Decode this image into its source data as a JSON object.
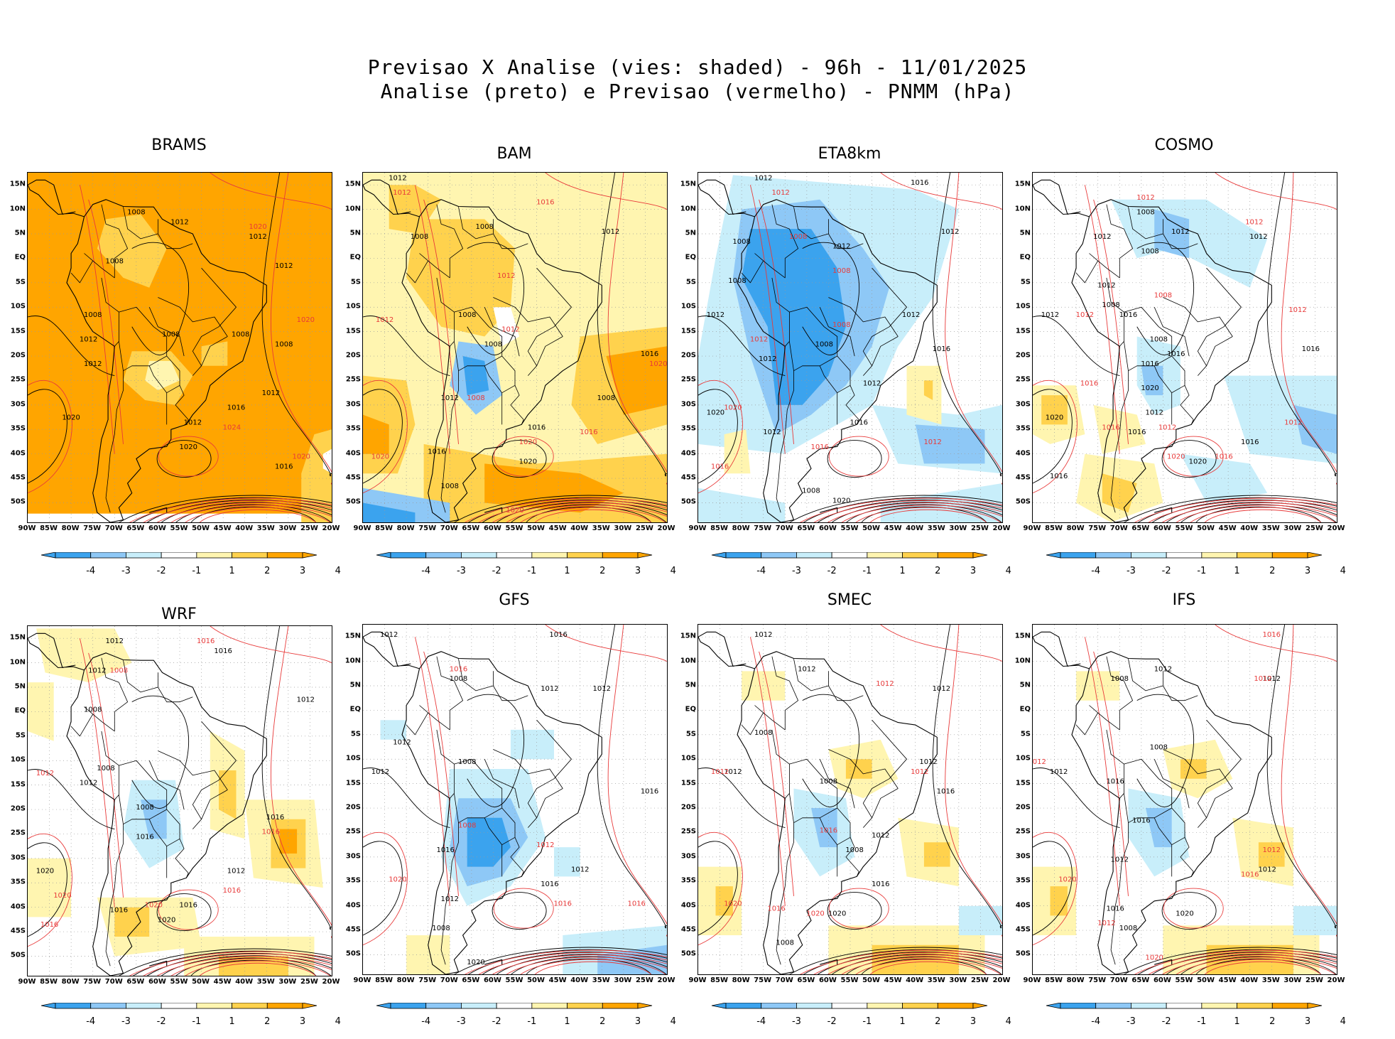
{
  "header": {
    "line1": "Previsao X Analise (vies: shaded) - 96h - 11/01/2025",
    "line2": "Analise (preto) e Previsao (vermelho) - PNMM (hPa)"
  },
  "colors": {
    "analysis_contour": "#000000",
    "forecast_contour": "#e83a3a",
    "bias_colors": [
      "#3ba3ee",
      "#8ec8f6",
      "#c8eefa",
      "#ffffff",
      "#fff5b0",
      "#ffd24d",
      "#ffa500"
    ]
  },
  "axes": {
    "lat_labels": [
      "15N",
      "10N",
      "5N",
      "EQ",
      "5S",
      "10S",
      "15S",
      "20S",
      "25S",
      "30S",
      "35S",
      "40S",
      "45S",
      "50S"
    ],
    "lon_labels": [
      "90W",
      "85W",
      "80W",
      "75W",
      "70W",
      "65W",
      "60W",
      "55W",
      "50W",
      "45W",
      "40W",
      "35W",
      "30W",
      "25W",
      "20W"
    ]
  },
  "colorbar": {
    "labels": [
      "-4",
      "-3",
      "-2",
      "-1",
      "1",
      "2",
      "3",
      "4"
    ]
  },
  "panels": [
    {
      "model": "BRAMS",
      "bias": "strong-positive",
      "black_labels": [
        {
          "t": "1008",
          "lon": -65,
          "lat": 9
        },
        {
          "t": "1012",
          "lon": -55,
          "lat": 7
        },
        {
          "t": "1012",
          "lon": -37,
          "lat": 4
        },
        {
          "t": "1012",
          "lon": -31,
          "lat": -2
        },
        {
          "t": "1008",
          "lon": -70,
          "lat": -1
        },
        {
          "t": "1008",
          "lon": -75,
          "lat": -12
        },
        {
          "t": "1012",
          "lon": -76,
          "lat": -17
        },
        {
          "t": "1008",
          "lon": -57,
          "lat": -16
        },
        {
          "t": "1008",
          "lon": -41,
          "lat": -16
        },
        {
          "t": "1008",
          "lon": -31,
          "lat": -18
        },
        {
          "t": "1012",
          "lon": -75,
          "lat": -22
        },
        {
          "t": "1012",
          "lon": -34,
          "lat": -28
        },
        {
          "t": "1016",
          "lon": -42,
          "lat": -31
        },
        {
          "t": "1012",
          "lon": -52,
          "lat": -34
        },
        {
          "t": "1020",
          "lon": -80,
          "lat": -33
        },
        {
          "t": "1016",
          "lon": -31,
          "lat": -43
        },
        {
          "t": "1020",
          "lon": -53,
          "lat": -39
        }
      ],
      "red_labels": [
        {
          "t": "1020",
          "lon": -37,
          "lat": 6
        },
        {
          "t": "1020",
          "lon": -26,
          "lat": -13
        },
        {
          "t": "1024",
          "lon": -43,
          "lat": -35
        },
        {
          "t": "1020",
          "lon": -27,
          "lat": -41
        }
      ]
    },
    {
      "model": "BAM",
      "bias": "positive",
      "black_labels": [
        {
          "t": "1012",
          "lon": -82,
          "lat": 16
        },
        {
          "t": "1008",
          "lon": -62,
          "lat": 6
        },
        {
          "t": "1012",
          "lon": -33,
          "lat": 5
        },
        {
          "t": "1008",
          "lon": -77,
          "lat": 4
        },
        {
          "t": "1008",
          "lon": -66,
          "lat": -12
        },
        {
          "t": "1008",
          "lon": -60,
          "lat": -18
        },
        {
          "t": "1016",
          "lon": -24,
          "lat": -20
        },
        {
          "t": "1012",
          "lon": -70,
          "lat": -29
        },
        {
          "t": "1008",
          "lon": -34,
          "lat": -29
        },
        {
          "t": "1016",
          "lon": -50,
          "lat": -35
        },
        {
          "t": "1016",
          "lon": -73,
          "lat": -40
        },
        {
          "t": "1020",
          "lon": -52,
          "lat": -42
        },
        {
          "t": "1008",
          "lon": -70,
          "lat": -47
        }
      ],
      "red_labels": [
        {
          "t": "1012",
          "lon": -81,
          "lat": 13
        },
        {
          "t": "1016",
          "lon": -48,
          "lat": 11
        },
        {
          "t": "1012",
          "lon": -57,
          "lat": -4
        },
        {
          "t": "1012",
          "lon": -56,
          "lat": -15
        },
        {
          "t": "1012",
          "lon": -85,
          "lat": -13
        },
        {
          "t": "1020",
          "lon": -22,
          "lat": -22
        },
        {
          "t": "1008",
          "lon": -64,
          "lat": -29
        },
        {
          "t": "1016",
          "lon": -38,
          "lat": -36
        },
        {
          "t": "1020",
          "lon": -52,
          "lat": -38
        },
        {
          "t": "1020",
          "lon": -86,
          "lat": -41
        },
        {
          "t": "1020",
          "lon": -55,
          "lat": -52
        }
      ]
    },
    {
      "model": "ETA8km",
      "bias": "negative",
      "black_labels": [
        {
          "t": "1012",
          "lon": -75,
          "lat": 16
        },
        {
          "t": "1016",
          "lon": -39,
          "lat": 15
        },
        {
          "t": "1008",
          "lon": -80,
          "lat": 3
        },
        {
          "t": "1012",
          "lon": -57,
          "lat": 2
        },
        {
          "t": "1012",
          "lon": -32,
          "lat": 5
        },
        {
          "t": "1008",
          "lon": -81,
          "lat": -5
        },
        {
          "t": "1012",
          "lon": -86,
          "lat": -12
        },
        {
          "t": "1012",
          "lon": -41,
          "lat": -12
        },
        {
          "t": "1008",
          "lon": -61,
          "lat": -18
        },
        {
          "t": "1012",
          "lon": -74,
          "lat": -21
        },
        {
          "t": "1016",
          "lon": -34,
          "lat": -19
        },
        {
          "t": "1012",
          "lon": -50,
          "lat": -26
        },
        {
          "t": "1020",
          "lon": -86,
          "lat": -32
        },
        {
          "t": "1016",
          "lon": -53,
          "lat": -34
        },
        {
          "t": "1012",
          "lon": -73,
          "lat": -36
        },
        {
          "t": "1008",
          "lon": -64,
          "lat": -48
        },
        {
          "t": "1020",
          "lon": -57,
          "lat": -50
        }
      ],
      "red_labels": [
        {
          "t": "1012",
          "lon": -71,
          "lat": 13
        },
        {
          "t": "1008",
          "lon": -67,
          "lat": 4
        },
        {
          "t": "1008",
          "lon": -57,
          "lat": -3
        },
        {
          "t": "1012",
          "lon": -76,
          "lat": -17
        },
        {
          "t": "1008",
          "lon": -57,
          "lat": -14
        },
        {
          "t": "1020",
          "lon": -82,
          "lat": -31
        },
        {
          "t": "1016",
          "lon": -62,
          "lat": -39
        },
        {
          "t": "1012",
          "lon": -36,
          "lat": -38
        },
        {
          "t": "1016",
          "lon": -85,
          "lat": -43
        }
      ]
    },
    {
      "model": "COSMO",
      "bias": "mixed",
      "black_labels": [
        {
          "t": "1008",
          "lon": -64,
          "lat": 9
        },
        {
          "t": "1012",
          "lon": -74,
          "lat": 4
        },
        {
          "t": "1012",
          "lon": -56,
          "lat": 5
        },
        {
          "t": "1012",
          "lon": -38,
          "lat": 4
        },
        {
          "t": "1008",
          "lon": -63,
          "lat": 1
        },
        {
          "t": "1012",
          "lon": -73,
          "lat": -6
        },
        {
          "t": "1008",
          "lon": -72,
          "lat": -10
        },
        {
          "t": "1016",
          "lon": -68,
          "lat": -12
        },
        {
          "t": "1012",
          "lon": -86,
          "lat": -12
        },
        {
          "t": "1008",
          "lon": -61,
          "lat": -17
        },
        {
          "t": "1016",
          "lon": -57,
          "lat": -20
        },
        {
          "t": "1016",
          "lon": -63,
          "lat": -22
        },
        {
          "t": "1016",
          "lon": -26,
          "lat": -19
        },
        {
          "t": "1020",
          "lon": -63,
          "lat": -27
        },
        {
          "t": "1012",
          "lon": -62,
          "lat": -32
        },
        {
          "t": "1020",
          "lon": -85,
          "lat": -33
        },
        {
          "t": "1016",
          "lon": -66,
          "lat": -36
        },
        {
          "t": "1016",
          "lon": -40,
          "lat": -38
        },
        {
          "t": "1016",
          "lon": -84,
          "lat": -45
        },
        {
          "t": "1020",
          "lon": -52,
          "lat": -42
        }
      ],
      "red_labels": [
        {
          "t": "1012",
          "lon": -64,
          "lat": 12
        },
        {
          "t": "1012",
          "lon": -39,
          "lat": 7
        },
        {
          "t": "1008",
          "lon": -60,
          "lat": -8
        },
        {
          "t": "1012",
          "lon": -78,
          "lat": -12
        },
        {
          "t": "1012",
          "lon": -29,
          "lat": -11
        },
        {
          "t": "1016",
          "lon": -77,
          "lat": -26
        },
        {
          "t": "1016",
          "lon": -72,
          "lat": -35
        },
        {
          "t": "1012",
          "lon": -59,
          "lat": -35
        },
        {
          "t": "1020",
          "lon": -57,
          "lat": -41
        },
        {
          "t": "1016",
          "lon": -46,
          "lat": -41
        },
        {
          "t": "1012",
          "lon": -30,
          "lat": -34
        }
      ]
    },
    {
      "model": "WRF",
      "bias": "mixed-positive",
      "black_labels": [
        {
          "t": "1012",
          "lon": -70,
          "lat": 14
        },
        {
          "t": "1016",
          "lon": -45,
          "lat": 12
        },
        {
          "t": "1012",
          "lon": -74,
          "lat": 8
        },
        {
          "t": "1012",
          "lon": -26,
          "lat": 2
        },
        {
          "t": "1008",
          "lon": -75,
          "lat": 0
        },
        {
          "t": "1008",
          "lon": -72,
          "lat": -12
        },
        {
          "t": "1012",
          "lon": -76,
          "lat": -15
        },
        {
          "t": "1008",
          "lon": -63,
          "lat": -20
        },
        {
          "t": "1016",
          "lon": -63,
          "lat": -26
        },
        {
          "t": "1016",
          "lon": -33,
          "lat": -22
        },
        {
          "t": "1020",
          "lon": -86,
          "lat": -33
        },
        {
          "t": "1012",
          "lon": -42,
          "lat": -33
        },
        {
          "t": "1016",
          "lon": -53,
          "lat": -40
        },
        {
          "t": "1020",
          "lon": -58,
          "lat": -43
        },
        {
          "t": "1016",
          "lon": -69,
          "lat": -41
        }
      ],
      "red_labels": [
        {
          "t": "1012",
          "lon": -86,
          "lat": -13
        },
        {
          "t": "1008",
          "lon": -69,
          "lat": 8
        },
        {
          "t": "1016",
          "lon": -49,
          "lat": 14
        },
        {
          "t": "1016",
          "lon": -34,
          "lat": -25
        },
        {
          "t": "1020",
          "lon": -82,
          "lat": -38
        },
        {
          "t": "1016",
          "lon": -43,
          "lat": -37
        },
        {
          "t": "1016",
          "lon": -85,
          "lat": -44
        },
        {
          "t": "1020",
          "lon": -61,
          "lat": -40
        }
      ]
    },
    {
      "model": "GFS",
      "bias": "negative-light",
      "black_labels": [
        {
          "t": "1012",
          "lon": -84,
          "lat": 15
        },
        {
          "t": "1016",
          "lon": -45,
          "lat": 15
        },
        {
          "t": "1008",
          "lon": -68,
          "lat": 6
        },
        {
          "t": "1012",
          "lon": -47,
          "lat": 4
        },
        {
          "t": "1012",
          "lon": -35,
          "lat": 4
        },
        {
          "t": "1012",
          "lon": -81,
          "lat": -7
        },
        {
          "t": "1008",
          "lon": -66,
          "lat": -11
        },
        {
          "t": "1012",
          "lon": -86,
          "lat": -13
        },
        {
          "t": "1016",
          "lon": -24,
          "lat": -17
        },
        {
          "t": "1016",
          "lon": -71,
          "lat": -29
        },
        {
          "t": "1016",
          "lon": -47,
          "lat": -36
        },
        {
          "t": "1012",
          "lon": -40,
          "lat": -33
        },
        {
          "t": "1008",
          "lon": -72,
          "lat": -45
        },
        {
          "t": "1020",
          "lon": -64,
          "lat": -52
        },
        {
          "t": "1012",
          "lon": -70,
          "lat": -39
        }
      ],
      "red_labels": [
        {
          "t": "1016",
          "lon": -68,
          "lat": 8
        },
        {
          "t": "1008",
          "lon": -66,
          "lat": -24
        },
        {
          "t": "1012",
          "lon": -48,
          "lat": -28
        },
        {
          "t": "1020",
          "lon": -82,
          "lat": -35
        },
        {
          "t": "1016",
          "lon": -44,
          "lat": -40
        },
        {
          "t": "1016",
          "lon": -27,
          "lat": -40
        }
      ]
    },
    {
      "model": "SMEC",
      "bias": "light-mixed",
      "black_labels": [
        {
          "t": "1012",
          "lon": -75,
          "lat": 15
        },
        {
          "t": "1012",
          "lon": -65,
          "lat": 8
        },
        {
          "t": "1012",
          "lon": -34,
          "lat": 4
        },
        {
          "t": "1008",
          "lon": -75,
          "lat": -5
        },
        {
          "t": "1012",
          "lon": -82,
          "lat": -13
        },
        {
          "t": "1008",
          "lon": -60,
          "lat": -15
        },
        {
          "t": "1012",
          "lon": -37,
          "lat": -11
        },
        {
          "t": "1016",
          "lon": -33,
          "lat": -17
        },
        {
          "t": "1012",
          "lon": -48,
          "lat": -26
        },
        {
          "t": "1008",
          "lon": -54,
          "lat": -29
        },
        {
          "t": "1016",
          "lon": -48,
          "lat": -36
        },
        {
          "t": "1020",
          "lon": -58,
          "lat": -42
        },
        {
          "t": "1008",
          "lon": -70,
          "lat": -48
        }
      ],
      "red_labels": [
        {
          "t": "1012",
          "lon": -47,
          "lat": 5
        },
        {
          "t": "1012",
          "lon": -85,
          "lat": -13
        },
        {
          "t": "1012",
          "lon": -39,
          "lat": -13
        },
        {
          "t": "1016",
          "lon": -60,
          "lat": -25
        },
        {
          "t": "1020",
          "lon": -82,
          "lat": -40
        },
        {
          "t": "1020",
          "lon": -63,
          "lat": -42
        },
        {
          "t": "1016",
          "lon": -72,
          "lat": -41
        }
      ]
    },
    {
      "model": "IFS",
      "bias": "light-mixed",
      "black_labels": [
        {
          "t": "1012",
          "lon": -60,
          "lat": 8
        },
        {
          "t": "1012",
          "lon": -35,
          "lat": 6
        },
        {
          "t": "1008",
          "lon": -70,
          "lat": 6
        },
        {
          "t": "1008",
          "lon": -61,
          "lat": -8
        },
        {
          "t": "1012",
          "lon": -84,
          "lat": -13
        },
        {
          "t": "1016",
          "lon": -71,
          "lat": -15
        },
        {
          "t": "1016",
          "lon": -65,
          "lat": -23
        },
        {
          "t": "1012",
          "lon": -70,
          "lat": -31
        },
        {
          "t": "1012",
          "lon": -36,
          "lat": -33
        },
        {
          "t": "1016",
          "lon": -71,
          "lat": -41
        },
        {
          "t": "1020",
          "lon": -55,
          "lat": -42
        },
        {
          "t": "1008",
          "lon": -68,
          "lat": -45
        }
      ],
      "red_labels": [
        {
          "t": "1016",
          "lon": -35,
          "lat": 15
        },
        {
          "t": "1012",
          "lon": -37,
          "lat": 6
        },
        {
          "t": "1012",
          "lon": -89,
          "lat": -11
        },
        {
          "t": "1012",
          "lon": -35,
          "lat": -29
        },
        {
          "t": "1016",
          "lon": -40,
          "lat": -34
        },
        {
          "t": "1020",
          "lon": -82,
          "lat": -35
        },
        {
          "t": "1020",
          "lon": -62,
          "lat": -51
        },
        {
          "t": "1012",
          "lon": -73,
          "lat": -44
        }
      ]
    }
  ]
}
